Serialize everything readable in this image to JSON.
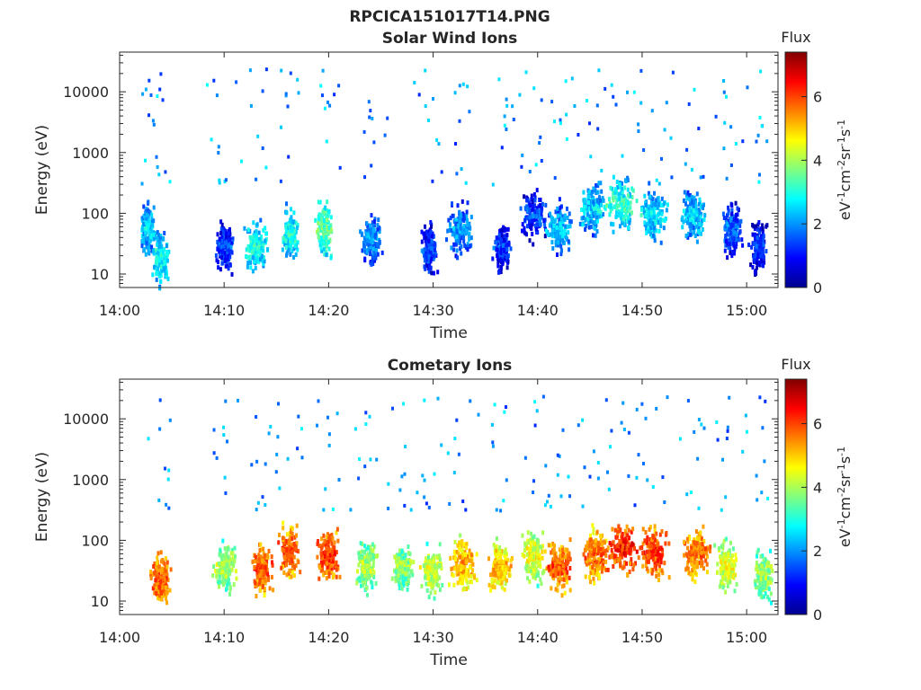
{
  "figure": {
    "title": "RPCICA151017T14.PNG"
  },
  "colorbar": {
    "label": "Flux",
    "unit_label": "eV-1cm-2sr-1s-1",
    "ticks": [
      0,
      2,
      4,
      6
    ],
    "range": [
      0,
      7.4
    ],
    "colormap": "jet"
  },
  "chart_data": [
    {
      "type": "heatmap",
      "title": "Solar Wind Ions",
      "xlabel": "Time",
      "ylabel": "Energy (eV)",
      "x_ticks": [
        "14:00",
        "14:10",
        "14:20",
        "14:30",
        "14:40",
        "14:50",
        "15:00"
      ],
      "y_ticks": [
        "10",
        "100",
        "1000",
        "10000"
      ],
      "y_scale": "log",
      "xlim_minutes_after_14_00": [
        0,
        63
      ],
      "ylim_eV": [
        6,
        45000
      ],
      "clusters": [
        {
          "t": 2.5,
          "e": 60,
          "flux": 2.6,
          "spread": 1.0
        },
        {
          "t": 3.8,
          "e": 20,
          "flux": 3.0,
          "spread": 1.0
        },
        {
          "t": 9.8,
          "e": 30,
          "flux": 1.6,
          "spread": 1.2
        },
        {
          "t": 13.0,
          "e": 30,
          "flux": 3.0,
          "spread": 1.4
        },
        {
          "t": 16.2,
          "e": 50,
          "flux": 3.0,
          "spread": 1.0
        },
        {
          "t": 19.5,
          "e": 60,
          "flux": 3.6,
          "spread": 1.0
        },
        {
          "t": 24.0,
          "e": 40,
          "flux": 2.2,
          "spread": 1.2
        },
        {
          "t": 29.5,
          "e": 25,
          "flux": 1.6,
          "spread": 1.0
        },
        {
          "t": 32.5,
          "e": 60,
          "flux": 2.2,
          "spread": 1.5
        },
        {
          "t": 36.5,
          "e": 30,
          "flux": 1.5,
          "spread": 1.0
        },
        {
          "t": 39.5,
          "e": 100,
          "flux": 1.6,
          "spread": 1.6
        },
        {
          "t": 42.0,
          "e": 60,
          "flux": 2.4,
          "spread": 1.5
        },
        {
          "t": 45.2,
          "e": 120,
          "flux": 2.6,
          "spread": 1.6
        },
        {
          "t": 48.0,
          "e": 150,
          "flux": 3.2,
          "spread": 1.8
        },
        {
          "t": 51.0,
          "e": 100,
          "flux": 2.8,
          "spread": 1.6
        },
        {
          "t": 54.8,
          "e": 100,
          "flux": 2.6,
          "spread": 1.5
        },
        {
          "t": 58.5,
          "e": 60,
          "flux": 1.8,
          "spread": 1.2
        },
        {
          "t": 61.0,
          "e": 30,
          "flux": 1.4,
          "spread": 1.0
        }
      ]
    },
    {
      "type": "heatmap",
      "title": "Cometary Ions",
      "xlabel": "Time",
      "ylabel": "Energy (eV)",
      "x_ticks": [
        "14:00",
        "14:10",
        "14:20",
        "14:30",
        "14:40",
        "14:50",
        "15:00"
      ],
      "y_ticks": [
        "10",
        "100",
        "1000",
        "10000"
      ],
      "y_scale": "log",
      "xlim_minutes_after_14_00": [
        0,
        63
      ],
      "ylim_eV": [
        6,
        45000
      ],
      "clusters": [
        {
          "t": 3.8,
          "e": 25,
          "flux": 6.0,
          "spread": 1.2
        },
        {
          "t": 10.0,
          "e": 40,
          "flux": 4.2,
          "spread": 1.4
        },
        {
          "t": 13.5,
          "e": 35,
          "flux": 6.0,
          "spread": 1.2
        },
        {
          "t": 16.2,
          "e": 70,
          "flux": 6.0,
          "spread": 1.3
        },
        {
          "t": 19.8,
          "e": 60,
          "flux": 6.2,
          "spread": 1.3
        },
        {
          "t": 23.5,
          "e": 40,
          "flux": 4.2,
          "spread": 1.3
        },
        {
          "t": 27.0,
          "e": 40,
          "flux": 4.0,
          "spread": 1.3
        },
        {
          "t": 29.8,
          "e": 35,
          "flux": 4.4,
          "spread": 1.3
        },
        {
          "t": 32.8,
          "e": 45,
          "flux": 5.4,
          "spread": 1.6
        },
        {
          "t": 36.2,
          "e": 40,
          "flux": 5.2,
          "spread": 1.3
        },
        {
          "t": 39.5,
          "e": 60,
          "flux": 4.6,
          "spread": 1.5
        },
        {
          "t": 42.0,
          "e": 40,
          "flux": 6.0,
          "spread": 1.6
        },
        {
          "t": 45.5,
          "e": 60,
          "flux": 5.8,
          "spread": 1.6
        },
        {
          "t": 48.0,
          "e": 80,
          "flux": 6.4,
          "spread": 1.8
        },
        {
          "t": 51.0,
          "e": 70,
          "flux": 6.2,
          "spread": 1.7
        },
        {
          "t": 55.0,
          "e": 70,
          "flux": 5.8,
          "spread": 1.6
        },
        {
          "t": 58.0,
          "e": 40,
          "flux": 4.6,
          "spread": 1.4
        },
        {
          "t": 61.5,
          "e": 30,
          "flux": 4.0,
          "spread": 1.2
        }
      ]
    }
  ]
}
